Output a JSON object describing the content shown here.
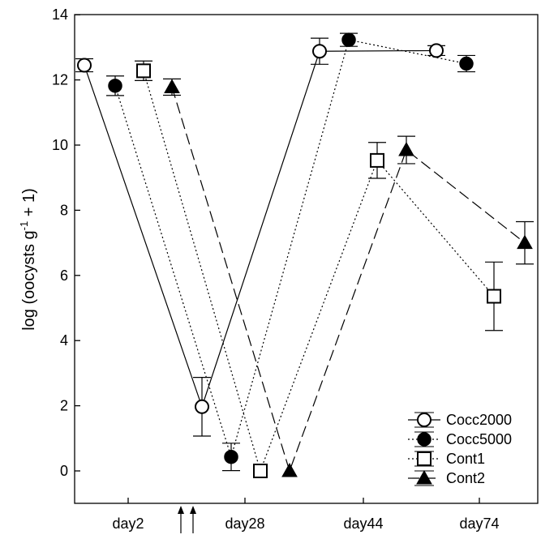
{
  "chart_data": {
    "type": "line",
    "title": "",
    "xlabel": "",
    "ylabel": "log (oocysts g",
    "ylabel_superscript": "-1",
    "ylabel_suffix": " + 1)",
    "ylim": [
      -1,
      14
    ],
    "yticks": [
      0,
      2,
      4,
      6,
      8,
      10,
      12,
      14
    ],
    "x_categories": [
      "day2",
      "day28",
      "day44",
      "day74"
    ],
    "annotation": "inoculation arrows (↑↑) between day2 and day28",
    "grid": false,
    "legend_position": "bottom-right",
    "series": [
      {
        "name": "Cocc2000",
        "marker": "circle-open",
        "line": "solid",
        "points": [
          {
            "x": "day2",
            "y": 12.45,
            "err": 0.2
          },
          {
            "x": "day28",
            "y": 1.97,
            "err": 0.9
          },
          {
            "x": "day44",
            "y": 12.88,
            "err": 0.4
          },
          {
            "x": "day74",
            "y": 12.9,
            "err": 0.15
          }
        ]
      },
      {
        "name": "Cocc5000",
        "marker": "circle-filled",
        "line": "dotted",
        "points": [
          {
            "x": "day2",
            "y": 11.82,
            "err": 0.3
          },
          {
            "x": "day28",
            "y": 0.43,
            "err": 0.42
          },
          {
            "x": "day44",
            "y": 13.23,
            "err": 0.2
          },
          {
            "x": "day74",
            "y": 12.5,
            "err": 0.25
          }
        ]
      },
      {
        "name": "Cont1",
        "marker": "square-open",
        "line": "dotted",
        "points": [
          {
            "x": "day2",
            "y": 12.28,
            "err": 0.3
          },
          {
            "x": "day28",
            "y": 0.0,
            "err": 0.0
          },
          {
            "x": "day44",
            "y": 9.53,
            "err": 0.55
          },
          {
            "x": "day74",
            "y": 5.36,
            "err": 1.05
          }
        ]
      },
      {
        "name": "Cont2",
        "marker": "triangle-filled",
        "line": "dashed",
        "points": [
          {
            "x": "day2",
            "y": 11.78,
            "err": 0.25
          },
          {
            "x": "day28",
            "y": 0.0,
            "err": 0.0
          },
          {
            "x": "day44",
            "y": 9.85,
            "err": 0.42
          },
          {
            "x": "day74",
            "y": 7.0,
            "err": 0.65
          }
        ]
      }
    ]
  }
}
